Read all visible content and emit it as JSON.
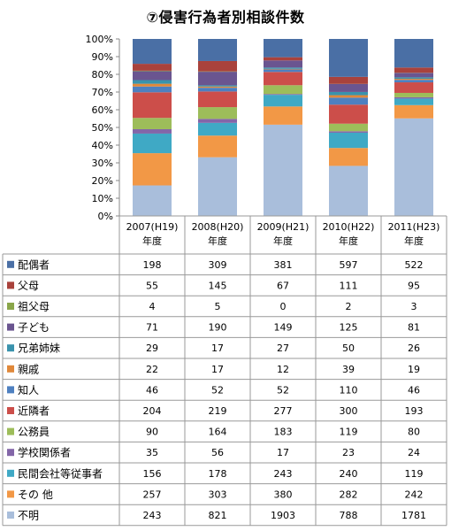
{
  "chart_data": {
    "type": "bar",
    "stacked": "percent",
    "title": "⑦侵害行為者別相談件数",
    "categories": [
      "2007(H19)\n年度",
      "2008(H20)\n年度",
      "2009(H21)\n年度",
      "2010(H22)\n年度",
      "2011(H23)\n年度"
    ],
    "y_ticks": [
      "0%",
      "10%",
      "20%",
      "30%",
      "40%",
      "50%",
      "60%",
      "70%",
      "80%",
      "90%",
      "100%"
    ],
    "ylim": [
      0,
      100
    ],
    "grid": false,
    "legend_placement": "data-table",
    "series": [
      {
        "name": "配偶者",
        "color": "#4a6fa5",
        "values": [
          198,
          309,
          381,
          597,
          522
        ]
      },
      {
        "name": "父母",
        "color": "#a9423c",
        "values": [
          55,
          145,
          67,
          111,
          95
        ]
      },
      {
        "name": "祖父母",
        "color": "#8aa64a",
        "values": [
          4,
          5,
          0,
          2,
          3
        ]
      },
      {
        "name": "子ども",
        "color": "#6a5590",
        "values": [
          71,
          190,
          149,
          125,
          81
        ]
      },
      {
        "name": "兄弟姉妹",
        "color": "#3a93ad",
        "values": [
          29,
          17,
          27,
          50,
          26
        ]
      },
      {
        "name": "親戚",
        "color": "#e0883a",
        "values": [
          22,
          17,
          12,
          39,
          19
        ]
      },
      {
        "name": "知人",
        "color": "#4e80c0",
        "values": [
          46,
          52,
          52,
          110,
          46
        ]
      },
      {
        "name": "近隣者",
        "color": "#cc4e4a",
        "values": [
          204,
          219,
          277,
          300,
          193
        ]
      },
      {
        "name": "公務員",
        "color": "#9dbd5a",
        "values": [
          90,
          164,
          183,
          119,
          80
        ]
      },
      {
        "name": "学校関係者",
        "color": "#8366a8",
        "values": [
          35,
          56,
          17,
          23,
          24
        ]
      },
      {
        "name": "民間会社等従事者",
        "color": "#3fa9c5",
        "values": [
          156,
          178,
          243,
          240,
          119
        ]
      },
      {
        "name": "その 他",
        "color": "#f29846",
        "values": [
          257,
          303,
          380,
          282,
          242
        ]
      },
      {
        "name": "不明",
        "color": "#a9bedb",
        "values": [
          243,
          821,
          1903,
          788,
          1781
        ]
      }
    ]
  }
}
